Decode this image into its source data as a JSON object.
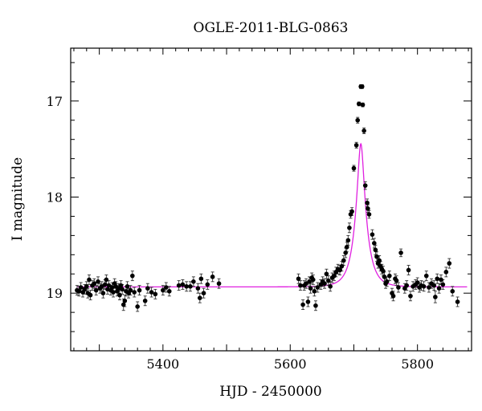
{
  "chart_data": {
    "type": "scatter",
    "title": "OGLE-2011-BLG-0863",
    "xlabel": "HJD - 2450000",
    "ylabel": "I magnitude",
    "xlim": [
      5255,
      5885
    ],
    "ylim": [
      19.6,
      16.45
    ],
    "y_inverted": true,
    "x_ticks": [
      5400,
      5600,
      5800
    ],
    "y_ticks": [
      17,
      18,
      19
    ],
    "x_minor_step": 20,
    "y_minor_step": 0.2,
    "grid": false,
    "colors": {
      "points": "#000000",
      "errorbars": "#333333",
      "model": "#e020e0",
      "frame": "#000000"
    },
    "model": {
      "baseline": 18.935,
      "t0": 5711,
      "u0": 0.26,
      "tE": 17.4,
      "xmin": 5265,
      "xmax": 5878
    },
    "points": [
      {
        "x": 5265,
        "y": 18.97,
        "e": 0.05
      },
      {
        "x": 5268,
        "y": 18.98,
        "e": 0.05
      },
      {
        "x": 5271,
        "y": 18.94,
        "e": 0.05
      },
      {
        "x": 5274,
        "y": 18.99,
        "e": 0.05
      },
      {
        "x": 5277,
        "y": 18.96,
        "e": 0.05
      },
      {
        "x": 5280,
        "y": 18.93,
        "e": 0.05
      },
      {
        "x": 5282,
        "y": 19.0,
        "e": 0.05
      },
      {
        "x": 5284,
        "y": 18.86,
        "e": 0.05
      },
      {
        "x": 5286,
        "y": 19.02,
        "e": 0.05
      },
      {
        "x": 5289,
        "y": 18.92,
        "e": 0.05
      },
      {
        "x": 5292,
        "y": 18.9,
        "e": 0.05
      },
      {
        "x": 5295,
        "y": 18.97,
        "e": 0.05
      },
      {
        "x": 5298,
        "y": 18.88,
        "e": 0.05
      },
      {
        "x": 5301,
        "y": 18.95,
        "e": 0.05
      },
      {
        "x": 5304,
        "y": 18.93,
        "e": 0.05
      },
      {
        "x": 5306,
        "y": 19.0,
        "e": 0.05
      },
      {
        "x": 5309,
        "y": 18.91,
        "e": 0.05
      },
      {
        "x": 5311,
        "y": 18.86,
        "e": 0.05
      },
      {
        "x": 5313,
        "y": 18.96,
        "e": 0.05
      },
      {
        "x": 5315,
        "y": 18.92,
        "e": 0.05
      },
      {
        "x": 5318,
        "y": 18.97,
        "e": 0.05
      },
      {
        "x": 5320,
        "y": 18.94,
        "e": 0.05
      },
      {
        "x": 5322,
        "y": 18.99,
        "e": 0.05
      },
      {
        "x": 5324,
        "y": 18.9,
        "e": 0.05
      },
      {
        "x": 5326,
        "y": 18.93,
        "e": 0.05
      },
      {
        "x": 5328,
        "y": 18.98,
        "e": 0.05
      },
      {
        "x": 5330,
        "y": 18.95,
        "e": 0.05
      },
      {
        "x": 5332,
        "y": 19.02,
        "e": 0.05
      },
      {
        "x": 5334,
        "y": 18.92,
        "e": 0.05
      },
      {
        "x": 5336,
        "y": 18.96,
        "e": 0.05
      },
      {
        "x": 5338,
        "y": 19.12,
        "e": 0.06
      },
      {
        "x": 5340,
        "y": 19.08,
        "e": 0.06
      },
      {
        "x": 5342,
        "y": 18.98,
        "e": 0.05
      },
      {
        "x": 5344,
        "y": 18.93,
        "e": 0.05
      },
      {
        "x": 5346,
        "y": 19.0,
        "e": 0.05
      },
      {
        "x": 5349,
        "y": 18.97,
        "e": 0.05
      },
      {
        "x": 5352,
        "y": 18.82,
        "e": 0.05
      },
      {
        "x": 5355,
        "y": 18.99,
        "e": 0.05
      },
      {
        "x": 5360,
        "y": 19.14,
        "e": 0.05
      },
      {
        "x": 5363,
        "y": 18.97,
        "e": 0.05
      },
      {
        "x": 5372,
        "y": 19.08,
        "e": 0.05
      },
      {
        "x": 5376,
        "y": 18.95,
        "e": 0.05
      },
      {
        "x": 5382,
        "y": 18.99,
        "e": 0.05
      },
      {
        "x": 5388,
        "y": 19.01,
        "e": 0.05
      },
      {
        "x": 5400,
        "y": 18.97,
        "e": 0.05
      },
      {
        "x": 5405,
        "y": 18.94,
        "e": 0.05
      },
      {
        "x": 5410,
        "y": 18.98,
        "e": 0.05
      },
      {
        "x": 5425,
        "y": 18.92,
        "e": 0.05
      },
      {
        "x": 5431,
        "y": 18.91,
        "e": 0.05
      },
      {
        "x": 5437,
        "y": 18.93,
        "e": 0.05
      },
      {
        "x": 5443,
        "y": 18.93,
        "e": 0.05
      },
      {
        "x": 5448,
        "y": 18.88,
        "e": 0.05
      },
      {
        "x": 5455,
        "y": 18.95,
        "e": 0.05
      },
      {
        "x": 5458,
        "y": 19.05,
        "e": 0.05
      },
      {
        "x": 5460,
        "y": 18.85,
        "e": 0.05
      },
      {
        "x": 5464,
        "y": 19.0,
        "e": 0.05
      },
      {
        "x": 5470,
        "y": 18.91,
        "e": 0.05
      },
      {
        "x": 5478,
        "y": 18.83,
        "e": 0.05
      },
      {
        "x": 5488,
        "y": 18.9,
        "e": 0.05
      },
      {
        "x": 5613,
        "y": 18.85,
        "e": 0.05
      },
      {
        "x": 5616,
        "y": 18.92,
        "e": 0.05
      },
      {
        "x": 5620,
        "y": 19.12,
        "e": 0.05
      },
      {
        "x": 5622,
        "y": 18.92,
        "e": 0.05
      },
      {
        "x": 5625,
        "y": 18.9,
        "e": 0.05
      },
      {
        "x": 5628,
        "y": 19.09,
        "e": 0.05
      },
      {
        "x": 5630,
        "y": 18.88,
        "e": 0.05
      },
      {
        "x": 5632,
        "y": 18.95,
        "e": 0.05
      },
      {
        "x": 5634,
        "y": 18.84,
        "e": 0.05
      },
      {
        "x": 5636,
        "y": 18.86,
        "e": 0.05
      },
      {
        "x": 5638,
        "y": 18.98,
        "e": 0.05
      },
      {
        "x": 5640,
        "y": 19.13,
        "e": 0.05
      },
      {
        "x": 5643,
        "y": 18.94,
        "e": 0.05
      },
      {
        "x": 5648,
        "y": 18.91,
        "e": 0.05
      },
      {
        "x": 5651,
        "y": 18.88,
        "e": 0.05
      },
      {
        "x": 5654,
        "y": 18.9,
        "e": 0.05
      },
      {
        "x": 5657,
        "y": 18.8,
        "e": 0.05
      },
      {
        "x": 5660,
        "y": 18.87,
        "e": 0.05
      },
      {
        "x": 5663,
        "y": 18.93,
        "e": 0.05
      },
      {
        "x": 5666,
        "y": 18.84,
        "e": 0.05
      },
      {
        "x": 5669,
        "y": 18.82,
        "e": 0.05
      },
      {
        "x": 5672,
        "y": 18.78,
        "e": 0.05
      },
      {
        "x": 5675,
        "y": 18.75,
        "e": 0.05
      },
      {
        "x": 5678,
        "y": 18.76,
        "e": 0.05
      },
      {
        "x": 5681,
        "y": 18.72,
        "e": 0.05
      },
      {
        "x": 5684,
        "y": 18.66,
        "e": 0.05
      },
      {
        "x": 5687,
        "y": 18.58,
        "e": 0.05
      },
      {
        "x": 5689,
        "y": 18.52,
        "e": 0.05
      },
      {
        "x": 5691,
        "y": 18.45,
        "e": 0.05
      },
      {
        "x": 5693,
        "y": 18.32,
        "e": 0.05
      },
      {
        "x": 5695,
        "y": 18.18,
        "e": 0.04
      },
      {
        "x": 5697,
        "y": 18.15,
        "e": 0.04
      },
      {
        "x": 5700,
        "y": 17.7,
        "e": 0.03
      },
      {
        "x": 5704,
        "y": 17.46,
        "e": 0.03
      },
      {
        "x": 5706,
        "y": 17.2,
        "e": 0.03
      },
      {
        "x": 5708,
        "y": 17.03,
        "e": 0.02
      },
      {
        "x": 5711,
        "y": 16.85,
        "e": 0.02
      },
      {
        "x": 5713,
        "y": 16.85,
        "e": 0.02
      },
      {
        "x": 5714,
        "y": 17.04,
        "e": 0.02
      },
      {
        "x": 5716,
        "y": 17.31,
        "e": 0.03
      },
      {
        "x": 5718,
        "y": 17.88,
        "e": 0.04
      },
      {
        "x": 5721,
        "y": 18.06,
        "e": 0.04
      },
      {
        "x": 5722,
        "y": 18.12,
        "e": 0.04
      },
      {
        "x": 5724,
        "y": 18.18,
        "e": 0.04
      },
      {
        "x": 5729,
        "y": 18.39,
        "e": 0.05
      },
      {
        "x": 5732,
        "y": 18.48,
        "e": 0.05
      },
      {
        "x": 5734,
        "y": 18.55,
        "e": 0.05
      },
      {
        "x": 5736,
        "y": 18.62,
        "e": 0.05
      },
      {
        "x": 5738,
        "y": 18.69,
        "e": 0.05
      },
      {
        "x": 5740,
        "y": 18.66,
        "e": 0.05
      },
      {
        "x": 5742,
        "y": 18.72,
        "e": 0.05
      },
      {
        "x": 5744,
        "y": 18.75,
        "e": 0.05
      },
      {
        "x": 5746,
        "y": 18.77,
        "e": 0.05
      },
      {
        "x": 5748,
        "y": 18.83,
        "e": 0.05
      },
      {
        "x": 5750,
        "y": 18.9,
        "e": 0.05
      },
      {
        "x": 5752,
        "y": 18.88,
        "e": 0.05
      },
      {
        "x": 5756,
        "y": 18.82,
        "e": 0.05
      },
      {
        "x": 5760,
        "y": 19.0,
        "e": 0.05
      },
      {
        "x": 5762,
        "y": 19.03,
        "e": 0.05
      },
      {
        "x": 5765,
        "y": 18.85,
        "e": 0.05
      },
      {
        "x": 5767,
        "y": 18.87,
        "e": 0.05
      },
      {
        "x": 5770,
        "y": 18.94,
        "e": 0.05
      },
      {
        "x": 5774,
        "y": 18.58,
        "e": 0.04
      },
      {
        "x": 5780,
        "y": 18.95,
        "e": 0.05
      },
      {
        "x": 5783,
        "y": 18.92,
        "e": 0.05
      },
      {
        "x": 5786,
        "y": 18.76,
        "e": 0.05
      },
      {
        "x": 5789,
        "y": 19.03,
        "e": 0.05
      },
      {
        "x": 5793,
        "y": 18.93,
        "e": 0.05
      },
      {
        "x": 5797,
        "y": 18.91,
        "e": 0.05
      },
      {
        "x": 5800,
        "y": 18.89,
        "e": 0.05
      },
      {
        "x": 5803,
        "y": 18.94,
        "e": 0.05
      },
      {
        "x": 5806,
        "y": 18.92,
        "e": 0.05
      },
      {
        "x": 5810,
        "y": 18.93,
        "e": 0.05
      },
      {
        "x": 5814,
        "y": 18.82,
        "e": 0.05
      },
      {
        "x": 5818,
        "y": 18.94,
        "e": 0.05
      },
      {
        "x": 5822,
        "y": 18.9,
        "e": 0.05
      },
      {
        "x": 5826,
        "y": 18.92,
        "e": 0.05
      },
      {
        "x": 5828,
        "y": 19.04,
        "e": 0.06
      },
      {
        "x": 5831,
        "y": 18.85,
        "e": 0.05
      },
      {
        "x": 5834,
        "y": 18.95,
        "e": 0.05
      },
      {
        "x": 5837,
        "y": 18.86,
        "e": 0.05
      },
      {
        "x": 5840,
        "y": 18.91,
        "e": 0.05
      },
      {
        "x": 5845,
        "y": 18.78,
        "e": 0.05
      },
      {
        "x": 5850,
        "y": 18.69,
        "e": 0.05
      },
      {
        "x": 5855,
        "y": 18.98,
        "e": 0.05
      },
      {
        "x": 5863,
        "y": 19.09,
        "e": 0.05
      }
    ]
  }
}
